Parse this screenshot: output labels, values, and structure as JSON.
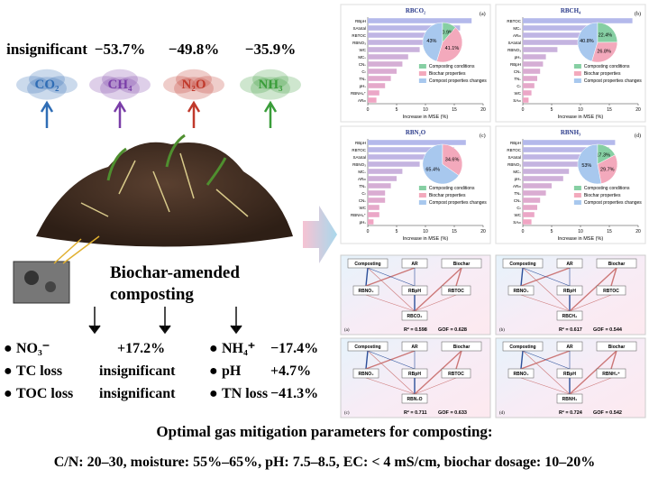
{
  "gases": [
    {
      "name": "CO₂",
      "change": "insignificant",
      "color": "#2f6db5"
    },
    {
      "name": "CH₄",
      "change": "−53.7%",
      "color": "#7a3ea8"
    },
    {
      "name": "N₂O",
      "change": "−49.8%",
      "color": "#c0392b"
    },
    {
      "name": "NH₃",
      "change": "−35.9%",
      "color": "#3a9d3a"
    }
  ],
  "center": {
    "title_line1": "Biochar-amended",
    "title_line2": "composting"
  },
  "effects": {
    "left": [
      {
        "item": "NO₃⁻",
        "change": "+17.2%"
      },
      {
        "item": "TC loss",
        "change": "insignificant"
      },
      {
        "item": "TOC loss",
        "change": "insignificant"
      }
    ],
    "right": [
      {
        "item": "NH₄⁺",
        "change": "−17.4%"
      },
      {
        "item": "pH",
        "change": "+4.7%"
      },
      {
        "item": "TN loss",
        "change": "−41.3%"
      }
    ]
  },
  "importance_charts": [
    {
      "title": "RBCO₂",
      "panel": "(a)",
      "x_label": "Increase in MSE (%)",
      "xlim": [
        0,
        20
      ],
      "xticks": [
        0,
        5,
        10,
        15,
        20
      ],
      "features": [
        "RBpH",
        "SAtotal",
        "RBTOC",
        "RBNO₃",
        "WC",
        "MCₛ",
        "CNₛ",
        "Cₜ",
        "TNₛ",
        "pHₛ",
        "RBNH₄⁺",
        "ARₘ"
      ],
      "values": [
        18,
        16,
        14,
        11,
        9,
        7,
        6,
        5,
        4,
        3,
        2,
        1.5
      ],
      "pie": {
        "values": [
          10.9,
          41.1,
          43
        ],
        "labels": [
          "10.9%",
          "41.1%",
          "43%"
        ]
      }
    },
    {
      "title": "RBCH₄",
      "panel": "(b)",
      "x_label": "Increase in MSE (%)",
      "xlim": [
        0,
        20
      ],
      "xticks": [
        0,
        5,
        10,
        15,
        20
      ],
      "features": [
        "RBTOC",
        "MCₛ",
        "ARₘ",
        "SAtotal",
        "RBNO₃",
        "pHₛ",
        "RBpH",
        "CNₛ",
        "TNₛ",
        "Cₜ",
        "WC",
        "SAₘ"
      ],
      "values": [
        19,
        12,
        11,
        10,
        6,
        4,
        3.5,
        3,
        2.5,
        2,
        1.5,
        1
      ],
      "pie": {
        "values": [
          22.4,
          26.8,
          40.8
        ],
        "labels": [
          "22.4%",
          "26.8%",
          "40.8%"
        ]
      }
    },
    {
      "title": "RBN₂O",
      "panel": "(c)",
      "x_label": "Increase in MSE (%)",
      "xlim": [
        0,
        20
      ],
      "xticks": [
        0,
        5,
        10,
        15,
        20
      ],
      "features": [
        "RBpH",
        "RBTOC",
        "SAtotal",
        "RBNO₃",
        "MCₛ",
        "ARₘ",
        "TNₛ",
        "Cₜ",
        "CNₛ",
        "WC",
        "RBNH₄⁺",
        "pHₛ"
      ],
      "values": [
        17,
        15,
        11,
        9,
        6,
        5,
        4,
        3,
        3,
        2,
        2,
        1
      ],
      "pie": {
        "values": [
          0,
          34.6,
          65.4
        ],
        "labels": [
          null,
          "34.6%",
          "65.4%"
        ]
      }
    },
    {
      "title": "RBNH₃",
      "panel": "(d)",
      "x_label": "Increase in MSE (%)",
      "xlim": [
        0,
        20
      ],
      "xticks": [
        0,
        5,
        10,
        15,
        20
      ],
      "features": [
        "RBpH",
        "RBTOC",
        "SAtotal",
        "RBNO₃",
        "MCₛ",
        "pHₛ",
        "ARₘ",
        "TNₛ",
        "CNₛ",
        "Cₜ",
        "WC",
        "SAₘ"
      ],
      "values": [
        16,
        15,
        13,
        10,
        8,
        7,
        5,
        4,
        3,
        2.5,
        2,
        1.5
      ],
      "pie": {
        "values": [
          17.3,
          29.7,
          53
        ],
        "labels": [
          "17.3%",
          "29.7%",
          "53%"
        ]
      }
    }
  ],
  "pie_legend": {
    "items": [
      "Composting conditions",
      "Biochar properties",
      "Compost properties changes"
    ],
    "colors": [
      "#86cfa3",
      "#f3a9bc",
      "#a8c8ee"
    ]
  },
  "sem_models": [
    {
      "panel": "(a)",
      "nodes": [
        "Composting",
        "AR",
        "Biochar",
        "RBNO₃",
        "RBpH",
        "RBTOC",
        "RBCO₂"
      ],
      "r2": "R² = 0.598",
      "gof": "GOF = 0.628"
    },
    {
      "panel": "(b)",
      "nodes": [
        "Composting",
        "AR",
        "Biochar",
        "RBNO₃",
        "RBpH",
        "RBTOC",
        "RBCH₄"
      ],
      "r2": "R² = 0.617",
      "gof": "GOF = 0.544"
    },
    {
      "panel": "(c)",
      "nodes": [
        "Composting",
        "AR",
        "Biochar",
        "RBNO₃",
        "RBpH",
        "RBTOC",
        "RBN₂O"
      ],
      "r2": "R² = 0.711",
      "gof": "GOF = 0.633"
    },
    {
      "panel": "(d)",
      "nodes": [
        "Composting",
        "AR",
        "Biochar",
        "RBNO₃",
        "RBpH",
        "RBNH₄⁺",
        "RBNH₃"
      ],
      "r2": "R² = 0.724",
      "gof": "GOF = 0.542"
    }
  ],
  "footer": {
    "title": "Optimal gas mitigation parameters for  composting:",
    "params": "C/N: 20–30, moisture: 55%–65%, pH: 7.5–8.5, EC: < 4 mS/cm, biochar dosage: 10–20%"
  }
}
